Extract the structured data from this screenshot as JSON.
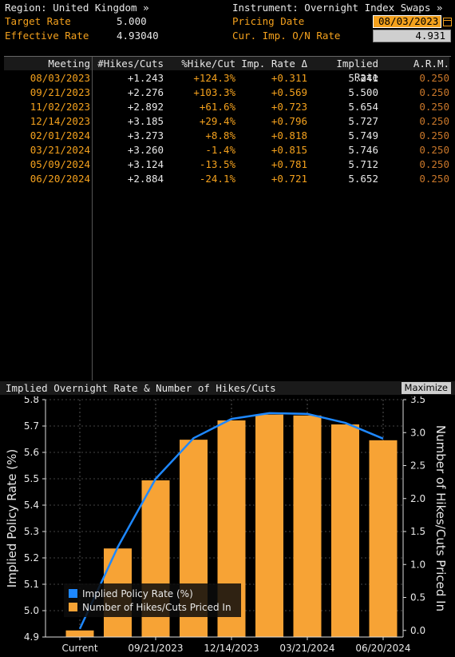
{
  "header": {
    "region_label": "Region: United Kingdom »",
    "instrument_label": "Instrument: Overnight Index Swaps »",
    "target_rate_label": "Target Rate",
    "target_rate_value": "5.000",
    "effective_rate_label": "Effective Rate",
    "effective_rate_value": "4.93040",
    "pricing_date_label": "Pricing Date",
    "pricing_date_value": "08/03/2023",
    "cur_imp_label": "Cur. Imp. O/N Rate",
    "cur_imp_value": "4.931"
  },
  "table": {
    "columns": [
      "Meeting",
      "#Hikes/Cuts",
      "%Hike/Cut",
      "Imp. Rate Δ",
      "Implied Rate",
      "A.R.M."
    ],
    "rows": [
      [
        "08/03/2023",
        "+1.243",
        "+124.3%",
        "+0.311",
        "5.241",
        "0.250"
      ],
      [
        "09/21/2023",
        "+2.276",
        "+103.3%",
        "+0.569",
        "5.500",
        "0.250"
      ],
      [
        "11/02/2023",
        "+2.892",
        "+61.6%",
        "+0.723",
        "5.654",
        "0.250"
      ],
      [
        "12/14/2023",
        "+3.185",
        "+29.4%",
        "+0.796",
        "5.727",
        "0.250"
      ],
      [
        "02/01/2024",
        "+3.273",
        "+8.8%",
        "+0.818",
        "5.749",
        "0.250"
      ],
      [
        "03/21/2024",
        "+3.260",
        "-1.4%",
        "+0.815",
        "5.746",
        "0.250"
      ],
      [
        "05/09/2024",
        "+3.124",
        "-13.5%",
        "+0.781",
        "5.712",
        "0.250"
      ],
      [
        "06/20/2024",
        "+2.884",
        "-24.1%",
        "+0.721",
        "5.652",
        "0.250"
      ]
    ]
  },
  "chart": {
    "panel_title": "Implied Overnight Rate & Number of Hikes/Cuts",
    "maximize_label": "Maximize"
  },
  "chart_data": {
    "type": "bar",
    "categories": [
      "Current",
      "08/03/2023",
      "09/21/2023",
      "11/02/2023",
      "12/14/2023",
      "02/01/2024",
      "03/21/2024",
      "05/09/2024",
      "06/20/2024"
    ],
    "x_tick_labels": [
      "Current",
      "09/21/2023",
      "12/14/2023",
      "03/21/2024",
      "06/20/2024"
    ],
    "series": [
      {
        "name": "Implied Policy Rate (%)",
        "type": "line",
        "axis": "left",
        "color": "#1e88ff",
        "values": [
          4.931,
          5.241,
          5.5,
          5.654,
          5.727,
          5.749,
          5.746,
          5.712,
          5.652
        ]
      },
      {
        "name": "Number of Hikes/Cuts Priced In",
        "type": "bar",
        "axis": "right",
        "color": "#f7a335",
        "values": [
          0,
          1.243,
          2.276,
          2.892,
          3.185,
          3.273,
          3.26,
          3.124,
          2.884
        ]
      }
    ],
    "ylabel_left": "Implied Policy Rate (%)",
    "ylabel_right": "Number of Hikes/Cuts Priced In",
    "ylim_left": [
      4.9,
      5.8
    ],
    "yticks_left": [
      "4.9",
      "5.0",
      "5.1",
      "5.2",
      "5.3",
      "5.4",
      "5.5",
      "5.6",
      "5.7",
      "5.8"
    ],
    "ylim_right": [
      -0.1,
      3.5
    ],
    "yticks_right": [
      "0.0",
      "0.5",
      "1.0",
      "1.5",
      "2.0",
      "2.5",
      "3.0",
      "3.5"
    ],
    "grid": true,
    "legend": "bottom-left"
  }
}
